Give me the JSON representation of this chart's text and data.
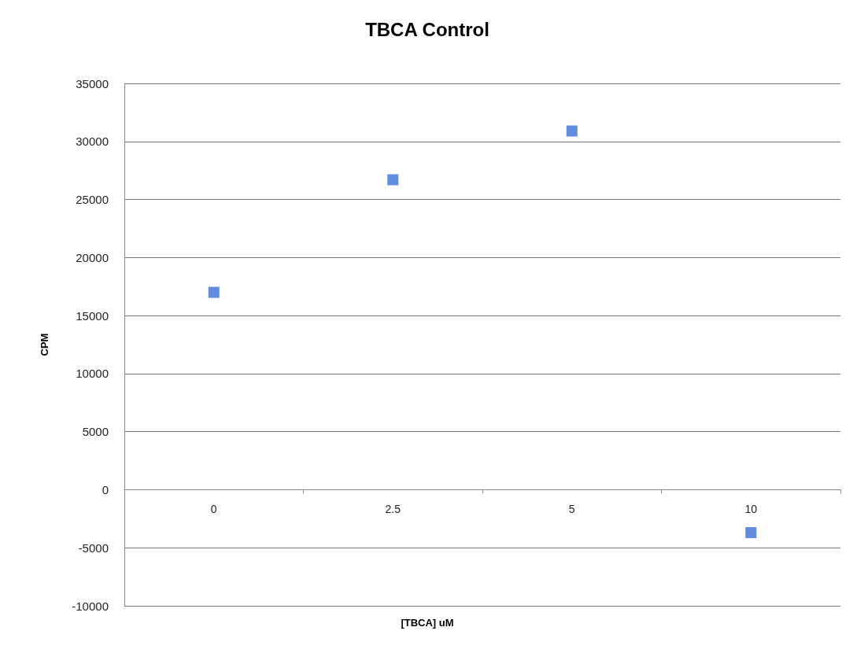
{
  "chart_data": {
    "type": "scatter",
    "title": "TBCA Control",
    "xlabel": "[TBCA] uM",
    "ylabel": "CPM",
    "categories": [
      "0",
      "2.5",
      "5",
      "10"
    ],
    "series": [
      {
        "color": "#3b6fd8",
        "values": [
          17000,
          26700,
          30900,
          -3700
        ]
      }
    ],
    "ylim": [
      -10000,
      35000
    ],
    "yticks": [
      -10000,
      -5000,
      0,
      5000,
      10000,
      15000,
      20000,
      25000,
      30000,
      35000
    ],
    "grid": "y",
    "marker": "square"
  }
}
